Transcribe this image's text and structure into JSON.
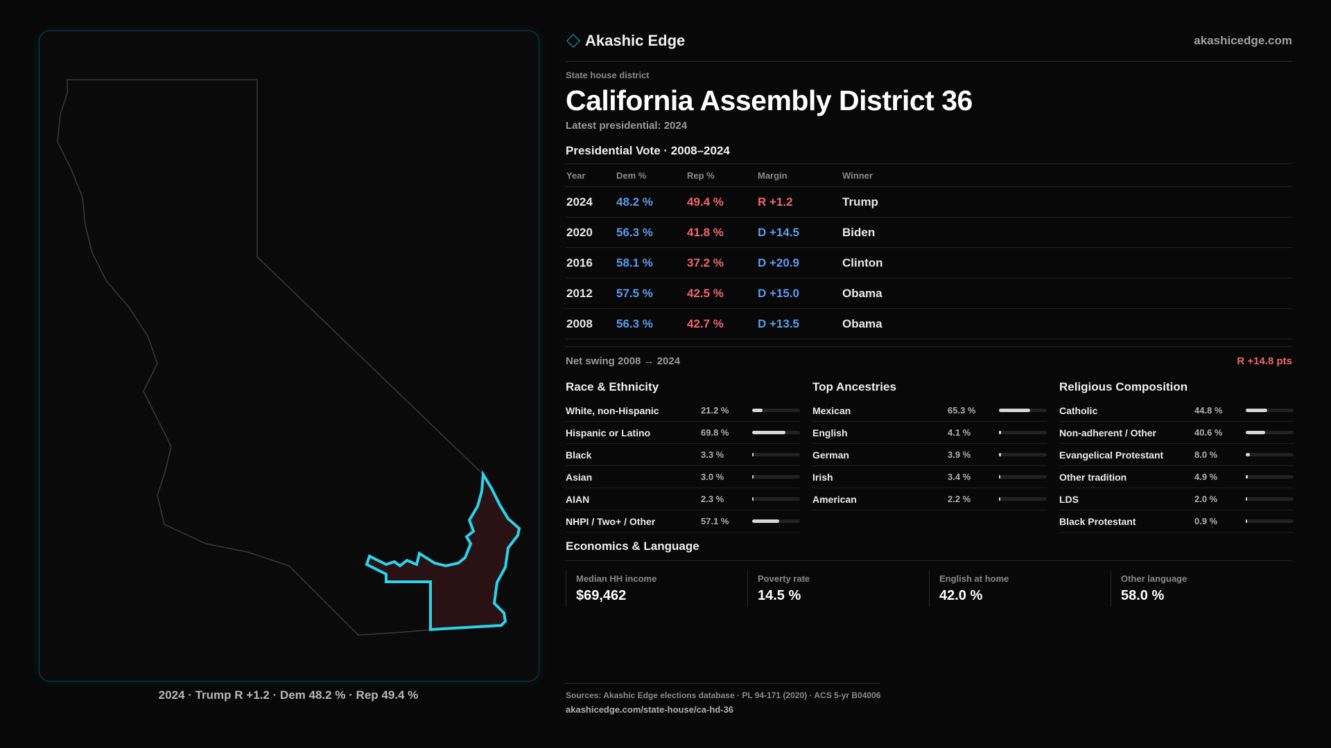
{
  "brand": {
    "name": "Akashic Edge",
    "site": "akashicedge.com",
    "icon": "diamond-icon",
    "accent": "#1fb6c4"
  },
  "district": {
    "kicker": "State house district",
    "title": "California Assembly District 36",
    "latest": "Latest presidential: 2024"
  },
  "votes": {
    "section_title": "Presidential Vote · 2008–2024",
    "headers": {
      "year": "Year",
      "dem": "Dem %",
      "rep": "Rep %",
      "margin": "Margin",
      "winner": "Winner"
    },
    "rows": [
      {
        "year": "2024",
        "dem": "48.2 %",
        "rep": "49.4 %",
        "margin": "R +1.2",
        "winner": "Trump"
      },
      {
        "year": "2020",
        "dem": "56.3 %",
        "rep": "41.8 %",
        "margin": "D +14.5",
        "winner": "Biden"
      },
      {
        "year": "2016",
        "dem": "58.1 %",
        "rep": "37.2 %",
        "margin": "D +20.9",
        "winner": "Clinton"
      },
      {
        "year": "2012",
        "dem": "57.5 %",
        "rep": "42.5 %",
        "margin": "D +15.0",
        "winner": "Obama"
      },
      {
        "year": "2008",
        "dem": "56.3 %",
        "rep": "42.7 %",
        "margin": "D +13.5",
        "winner": "Obama"
      }
    ],
    "swing_label": "Net swing 2008 → 2024",
    "swing_value": "R +14.8 pts"
  },
  "race": {
    "title": "Race & Ethnicity",
    "items": [
      {
        "label": "White, non-Hispanic",
        "value": "21.2 %",
        "pct": 21.2
      },
      {
        "label": "Hispanic or Latino",
        "value": "69.8 %",
        "pct": 69.8
      },
      {
        "label": "Black",
        "value": "3.3 %",
        "pct": 3.3
      },
      {
        "label": "Asian",
        "value": "3.0 %",
        "pct": 3.0
      },
      {
        "label": "AIAN",
        "value": "2.3 %",
        "pct": 2.3
      },
      {
        "label": "NHPI / Two+ / Other",
        "value": "57.1 %",
        "pct": 57.1
      }
    ]
  },
  "ancestry": {
    "title": "Top Ancestries",
    "items": [
      {
        "label": "Mexican",
        "value": "65.3 %",
        "pct": 65.3
      },
      {
        "label": "English",
        "value": "4.1 %",
        "pct": 4.1
      },
      {
        "label": "German",
        "value": "3.9 %",
        "pct": 3.9
      },
      {
        "label": "Irish",
        "value": "3.4 %",
        "pct": 3.4
      },
      {
        "label": "American",
        "value": "2.2 %",
        "pct": 2.2
      }
    ]
  },
  "religion": {
    "title": "Religious Composition",
    "items": [
      {
        "label": "Catholic",
        "value": "44.8 %",
        "pct": 44.8
      },
      {
        "label": "Non-adherent / Other",
        "value": "40.6 %",
        "pct": 40.6
      },
      {
        "label": "Evangelical Protestant",
        "value": "8.0 %",
        "pct": 8.0
      },
      {
        "label": "Other tradition",
        "value": "4.9 %",
        "pct": 4.9
      },
      {
        "label": "LDS",
        "value": "2.0 %",
        "pct": 2.0
      },
      {
        "label": "Black Protestant",
        "value": "0.9 %",
        "pct": 0.9
      }
    ]
  },
  "economics": {
    "title": "Economics & Language",
    "cards": [
      {
        "label": "Median HH income",
        "value": "$69,462"
      },
      {
        "label": "Poverty rate",
        "value": "14.5 %"
      },
      {
        "label": "English at home",
        "value": "42.0 %"
      },
      {
        "label": "Other language",
        "value": "58.0 %"
      }
    ]
  },
  "map": {
    "caption": "2024 · Trump R +1.2 · Dem 48.2 % · Rep 49.4 %",
    "district_stroke": "#2ad4ec",
    "district_fill": "#2a1214"
  },
  "sources": {
    "text": "Sources: Akashic Edge elections database · PL 94-171 (2020) · ACS 5-yr B04006",
    "url": "akashicedge.com/state-house/ca-hd-36"
  }
}
